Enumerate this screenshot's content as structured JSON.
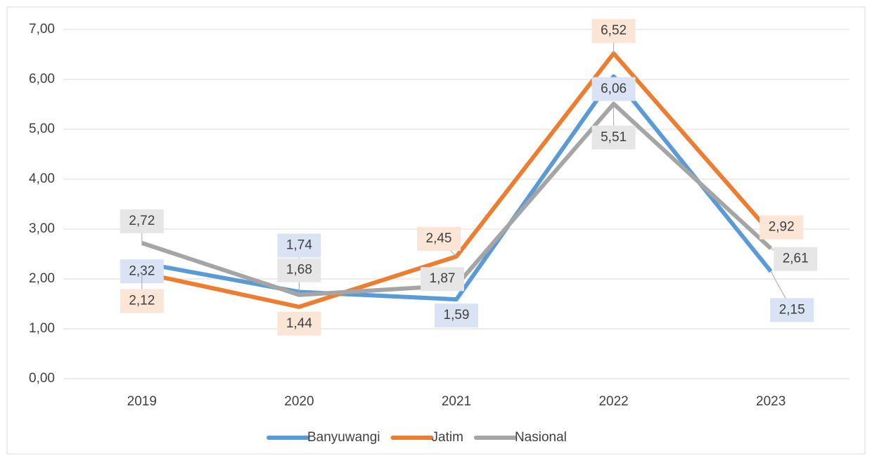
{
  "chart_data": {
    "type": "line",
    "categories": [
      "2019",
      "2020",
      "2021",
      "2022",
      "2023"
    ],
    "series": [
      {
        "name": "Banyuwangi",
        "color": "#5b9bd5",
        "label_bg": "#dae3f3",
        "values": [
          2.32,
          1.74,
          1.59,
          6.06,
          2.15
        ],
        "value_labels": [
          "2,32",
          "1,74",
          "1,59",
          "6,06",
          "2,15"
        ]
      },
      {
        "name": "Jatim",
        "color": "#ed7d31",
        "label_bg": "#fbe5d6",
        "values": [
          2.12,
          1.44,
          2.45,
          6.52,
          2.92
        ],
        "value_labels": [
          "2,12",
          "1,44",
          "2,45",
          "6,52",
          "2,92"
        ]
      },
      {
        "name": "Nasional",
        "color": "#a5a5a5",
        "label_bg": "#e7e6e6",
        "values": [
          2.72,
          1.68,
          1.87,
          5.51,
          2.61
        ],
        "value_labels": [
          "2,72",
          "1,68",
          "1,87",
          "5,51",
          "2,61"
        ]
      }
    ],
    "ylim": [
      0,
      7
    ],
    "yticks": [
      {
        "value": 0,
        "label": "0,00"
      },
      {
        "value": 1,
        "label": "1,00"
      },
      {
        "value": 2,
        "label": "2,00"
      },
      {
        "value": 3,
        "label": "3,00"
      },
      {
        "value": 4,
        "label": "4,00"
      },
      {
        "value": 5,
        "label": "5,00"
      },
      {
        "value": 6,
        "label": "6,00"
      },
      {
        "value": 7,
        "label": "7,00"
      }
    ],
    "grid": true,
    "legend": "bottom"
  }
}
